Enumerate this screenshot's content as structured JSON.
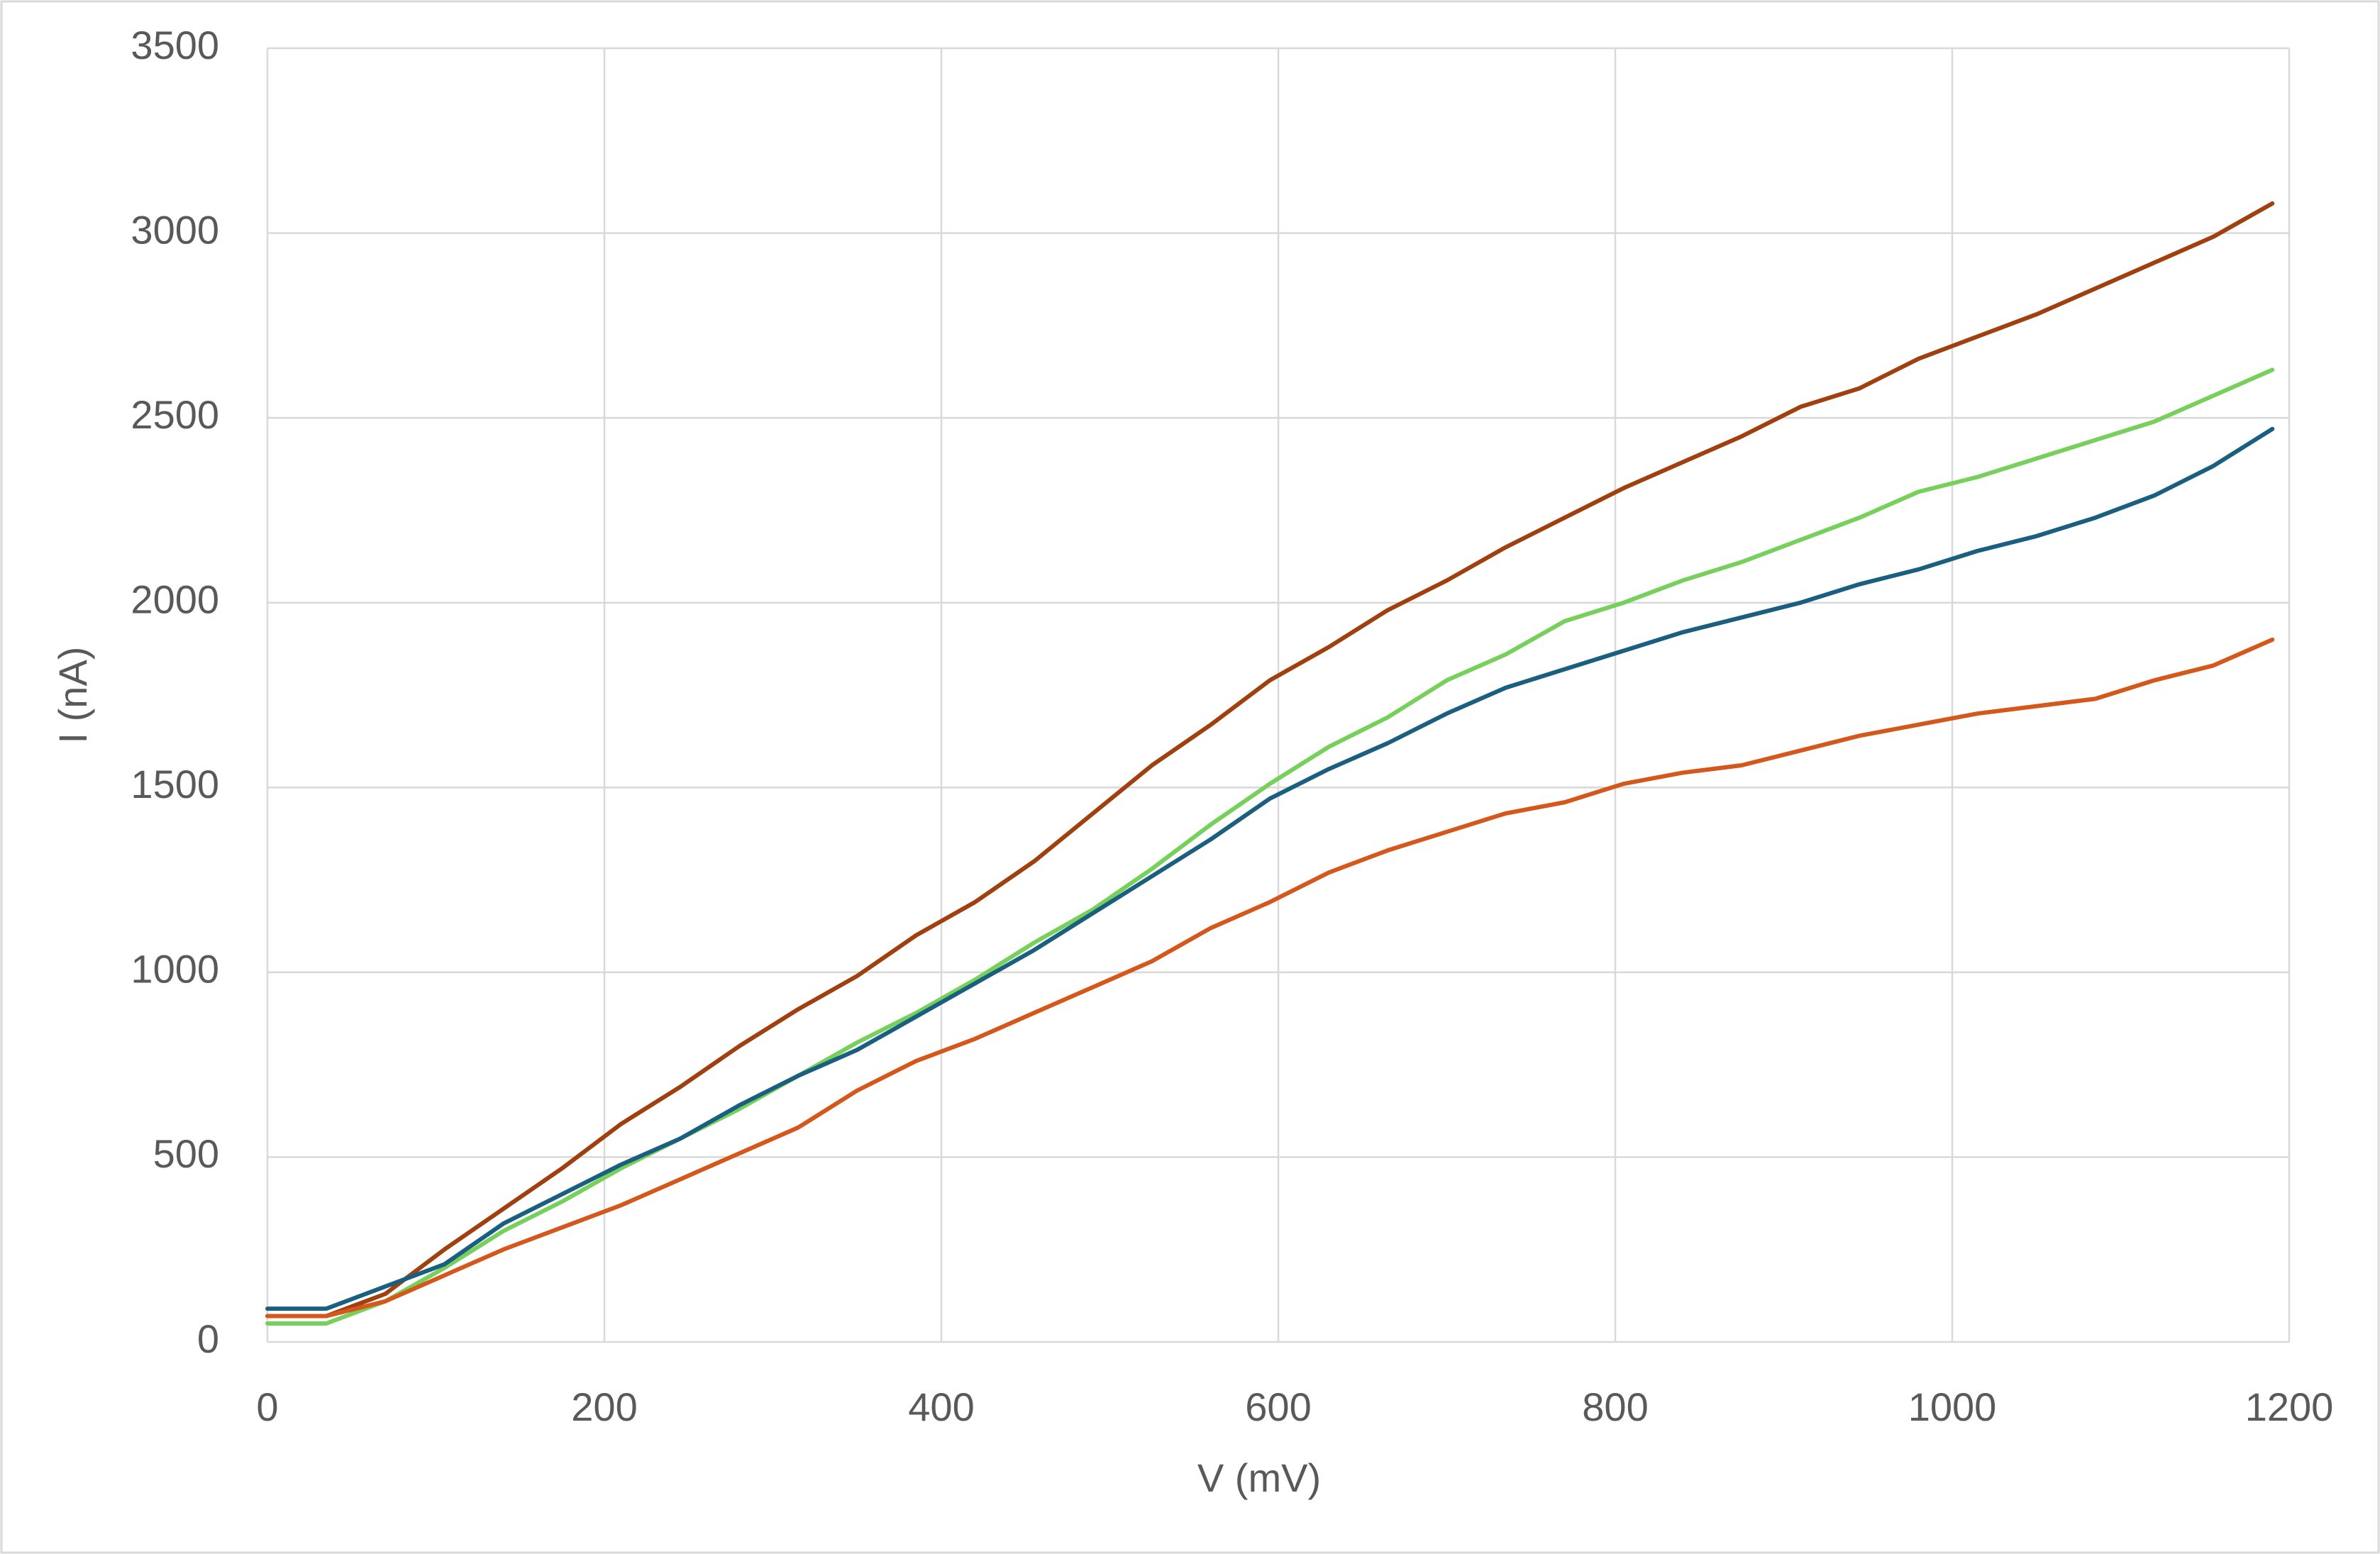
{
  "chart_data": {
    "type": "line",
    "x_label": "V (mV)",
    "y_label": "I (nA)",
    "x": [
      0,
      35,
      70,
      105,
      140,
      175,
      210,
      245,
      280,
      315,
      350,
      385,
      420,
      455,
      490,
      525,
      560,
      595,
      630,
      665,
      700,
      735,
      770,
      805,
      840,
      875,
      910,
      945,
      980,
      1015,
      1050,
      1085,
      1120,
      1155,
      1190
    ],
    "series": [
      {
        "color": "#a0400f",
        "values": [
          70,
          70,
          130,
          250,
          360,
          470,
          590,
          690,
          800,
          900,
          990,
          1100,
          1190,
          1300,
          1430,
          1560,
          1670,
          1790,
          1880,
          1980,
          2060,
          2150,
          2230,
          2310,
          2380,
          2450,
          2530,
          2580,
          2660,
          2720,
          2780,
          2850,
          2920,
          2990,
          3080
        ]
      },
      {
        "color": "#78d05c",
        "values": [
          50,
          50,
          110,
          200,
          300,
          380,
          470,
          550,
          630,
          720,
          810,
          890,
          980,
          1080,
          1170,
          1280,
          1400,
          1510,
          1610,
          1690,
          1790,
          1860,
          1950,
          2000,
          2060,
          2110,
          2170,
          2230,
          2300,
          2340,
          2390,
          2440,
          2490,
          2560,
          2630
        ]
      },
      {
        "color": "#1a5e80",
        "values": [
          90,
          90,
          150,
          210,
          320,
          400,
          480,
          550,
          640,
          720,
          790,
          880,
          970,
          1060,
          1160,
          1260,
          1360,
          1470,
          1550,
          1620,
          1700,
          1770,
          1820,
          1870,
          1920,
          1960,
          2000,
          2050,
          2090,
          2140,
          2180,
          2230,
          2290,
          2370,
          2470
        ]
      },
      {
        "color": "#d4581c",
        "values": [
          70,
          70,
          110,
          180,
          250,
          310,
          370,
          440,
          510,
          580,
          680,
          760,
          820,
          890,
          960,
          1030,
          1120,
          1190,
          1270,
          1330,
          1380,
          1430,
          1460,
          1510,
          1540,
          1560,
          1600,
          1640,
          1670,
          1700,
          1720,
          1740,
          1790,
          1830,
          1900
        ]
      }
    ],
    "xlim": [
      0,
      1200
    ],
    "xticks": [
      0,
      200,
      400,
      600,
      800,
      1000,
      1200
    ],
    "ylim": [
      0,
      3500
    ],
    "yticks": [
      0,
      500,
      1000,
      1500,
      2000,
      2500,
      3000,
      3500
    ],
    "grid": true
  }
}
